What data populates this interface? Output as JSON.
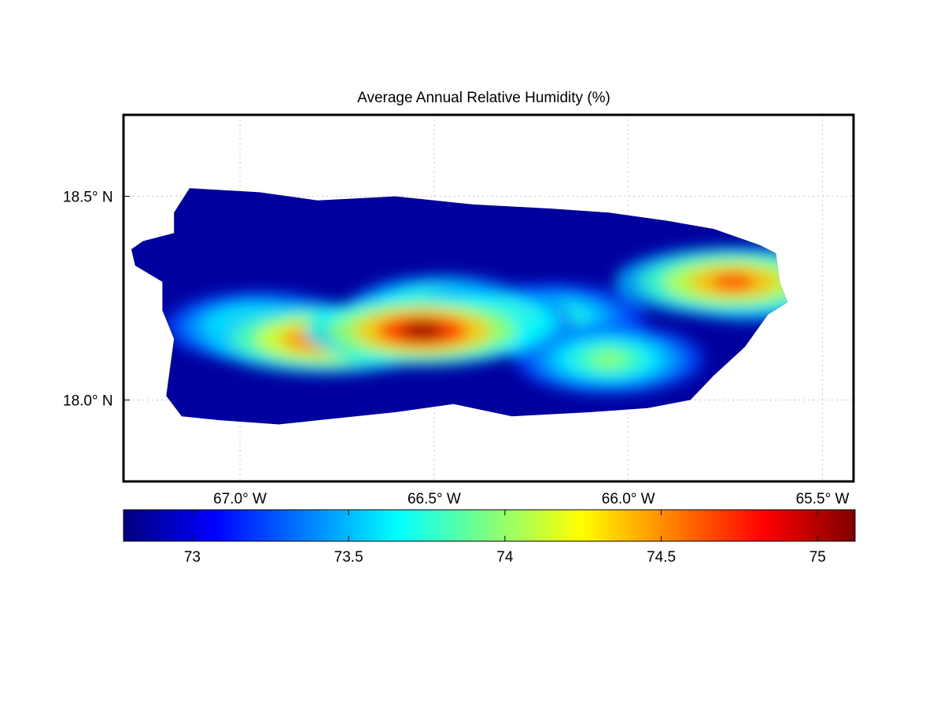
{
  "chart_data": {
    "type": "heatmap",
    "title": "Average Annual Relative Humidity (%)",
    "xlabel": "",
    "ylabel": "",
    "grid": true,
    "x_axis": {
      "ticks": [
        -67.0,
        -66.5,
        -66.0,
        -65.5
      ],
      "tick_labels": [
        "67.0",
        "66.5",
        "66.0",
        "65.5"
      ],
      "hemisphere": "W",
      "range": [
        -67.3,
        -65.42
      ]
    },
    "y_axis": {
      "ticks": [
        18.0,
        18.5
      ],
      "tick_labels": [
        "18.0",
        "18.5"
      ],
      "hemisphere": "N",
      "range": [
        17.8,
        18.7
      ]
    },
    "degree_symbol": "°",
    "colorbar": {
      "colormap": "jet",
      "range": [
        72.78,
        75.12
      ],
      "ticks": [
        73,
        73.5,
        74,
        74.5,
        75
      ],
      "tick_labels": [
        "73",
        "73.5",
        "74",
        "74.5",
        "75"
      ],
      "placement": "bottom"
    },
    "region_outline": [
      [
        -67.25,
        18.39
      ],
      [
        -67.17,
        18.41
      ],
      [
        -67.17,
        18.46
      ],
      [
        -67.13,
        18.52
      ],
      [
        -66.95,
        18.51
      ],
      [
        -66.8,
        18.49
      ],
      [
        -66.6,
        18.5
      ],
      [
        -66.4,
        18.48
      ],
      [
        -66.2,
        18.47
      ],
      [
        -66.05,
        18.46
      ],
      [
        -65.9,
        18.44
      ],
      [
        -65.78,
        18.42
      ],
      [
        -65.66,
        18.38
      ],
      [
        -65.62,
        18.36
      ],
      [
        -65.61,
        18.29
      ],
      [
        -65.59,
        18.24
      ],
      [
        -65.64,
        18.21
      ],
      [
        -65.7,
        18.13
      ],
      [
        -65.78,
        18.06
      ],
      [
        -65.84,
        18.0
      ],
      [
        -65.95,
        17.98
      ],
      [
        -66.1,
        17.97
      ],
      [
        -66.3,
        17.96
      ],
      [
        -66.45,
        17.99
      ],
      [
        -66.6,
        17.97
      ],
      [
        -66.8,
        17.95
      ],
      [
        -66.9,
        17.94
      ],
      [
        -67.05,
        17.95
      ],
      [
        -67.15,
        17.96
      ],
      [
        -67.19,
        18.01
      ],
      [
        -67.18,
        18.08
      ],
      [
        -67.17,
        18.15
      ],
      [
        -67.2,
        18.22
      ],
      [
        -67.2,
        18.29
      ],
      [
        -67.27,
        18.33
      ],
      [
        -67.28,
        18.37
      ]
    ],
    "relative_humidity_maxima": [
      {
        "lon": -66.53,
        "lat": 18.17,
        "value": 75.1
      },
      {
        "lon": -66.78,
        "lat": 18.15,
        "value": 74.8
      },
      {
        "lon": -66.48,
        "lat": 18.22,
        "value": 74.3
      },
      {
        "lon": -66.38,
        "lat": 18.19,
        "value": 74.4
      },
      {
        "lon": -65.73,
        "lat": 18.29,
        "value": 74.7
      },
      {
        "lon": -65.68,
        "lat": 18.28,
        "value": 74.5
      },
      {
        "lon": -66.05,
        "lat": 18.1,
        "value": 74.0
      },
      {
        "lon": -66.95,
        "lat": 18.18,
        "value": 74.0
      },
      {
        "lon": -66.2,
        "lat": 18.2,
        "value": 73.9
      }
    ],
    "background_value": 72.85
  }
}
